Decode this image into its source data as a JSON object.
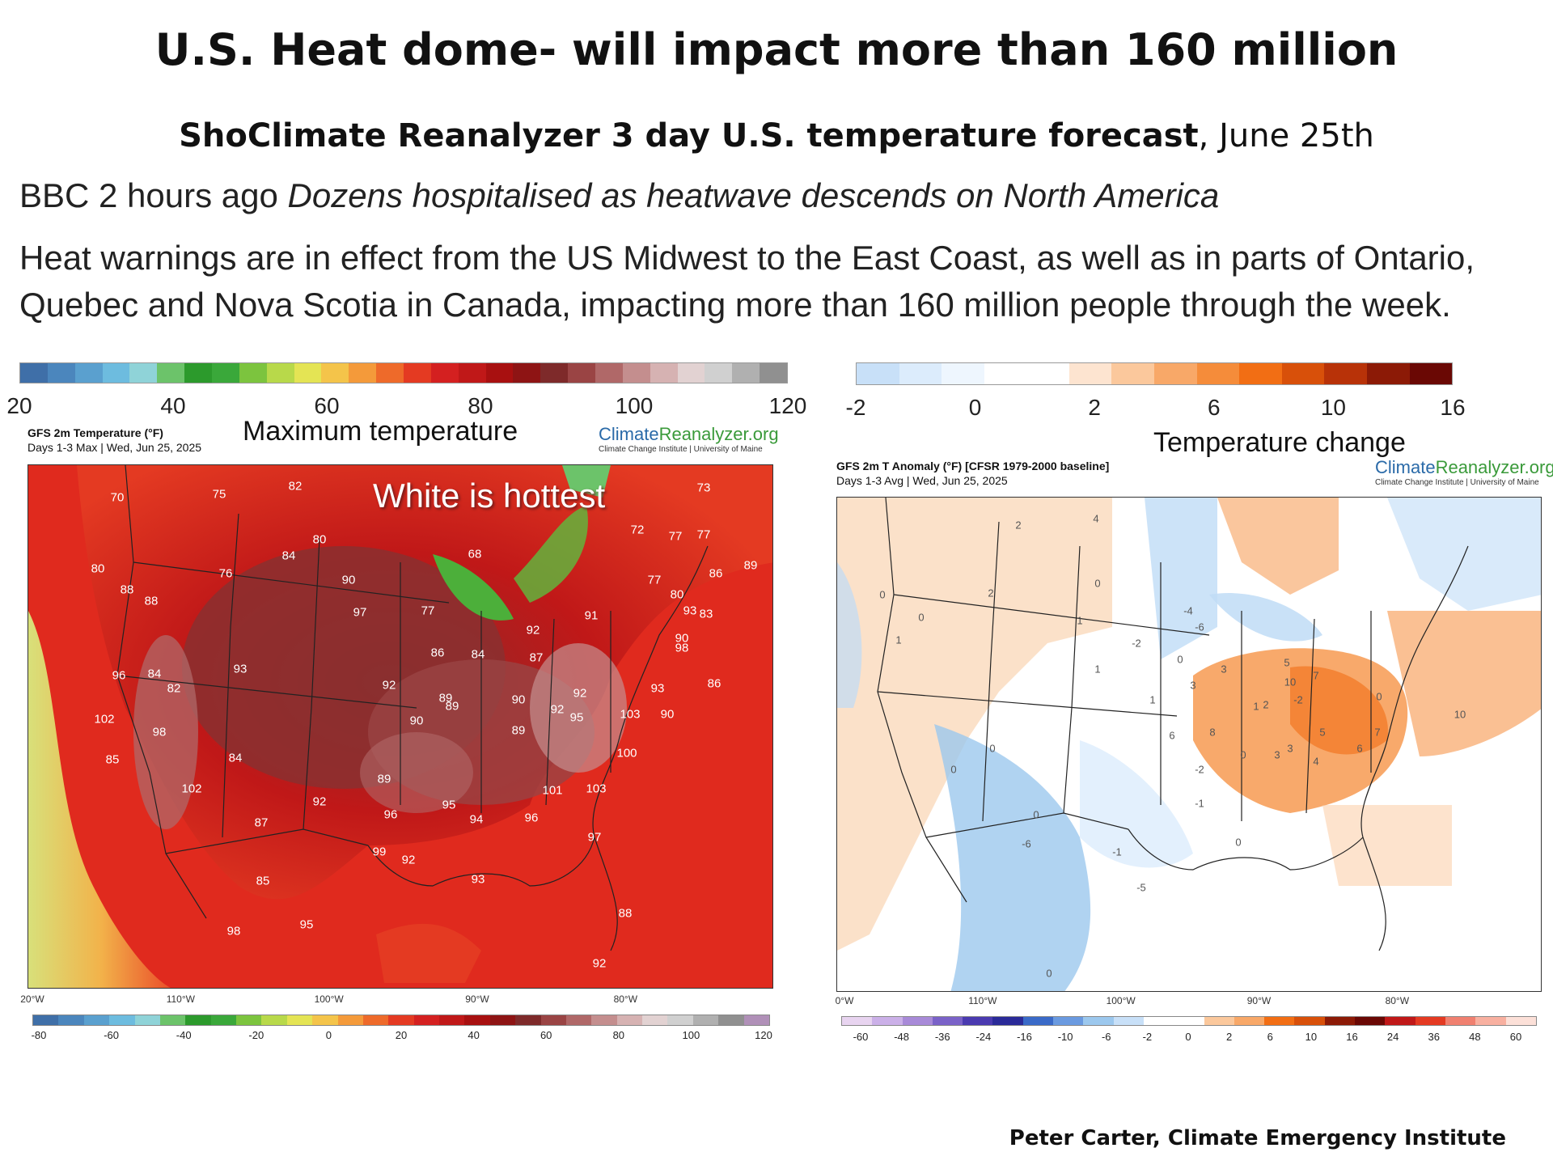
{
  "title": "U.S. Heat dome- will impact more than 160 million",
  "subtitle": {
    "bold": "ShoClimate Reanalyzer 3 day U.S. temperature forecast",
    "rest": ", June 25th"
  },
  "news": {
    "prefix": "BBC 2 hours ago ",
    "headline": "Dozens hospitalised as heatwave descends on North America"
  },
  "paragraph": "Heat warnings are in effect from the US Midwest to the East Coast, as well as in parts of Ontario, Quebec and Nova Scotia in Canada, impacting more than 160 million people through the week.",
  "left_panel": {
    "scale_ticks": [
      "20",
      "40",
      "60",
      "80",
      "100",
      "120"
    ],
    "overlay_label": "Maximum temperature",
    "header_line1": "GFS 2m Temperature (°F)",
    "header_line2": "Days 1-3 Max | Wed, Jun 25, 2025",
    "brand_part1": "Climate",
    "brand_part2": "Reanalyzer.org",
    "brand_sub": "Climate Change Institute | University of Maine",
    "hot_label": "White is hottest",
    "lon_labels": [
      "20°W",
      "110°W",
      "100°W",
      "90°W",
      "80°W"
    ],
    "bottom_ticks": [
      "-80",
      "-60",
      "-40",
      "-20",
      "0",
      "20",
      "40",
      "60",
      "80",
      "100",
      "120"
    ],
    "values": [
      "70",
      "75",
      "82",
      "73",
      "80",
      "72",
      "77",
      "77",
      "68",
      "80",
      "76",
      "84",
      "90",
      "86",
      "89",
      "77",
      "88",
      "97",
      "77",
      "80",
      "83",
      "93",
      "91",
      "88",
      "92",
      "90",
      "86",
      "84",
      "87",
      "96",
      "84",
      "93",
      "82",
      "92",
      "86",
      "98",
      "93",
      "90",
      "89",
      "90",
      "89",
      "92",
      "92",
      "102",
      "98",
      "90",
      "89",
      "95",
      "103",
      "85",
      "84",
      "100",
      "89",
      "95",
      "101",
      "103",
      "102",
      "92",
      "96",
      "94",
      "96",
      "87",
      "97",
      "99",
      "92",
      "93",
      "85",
      "95",
      "88",
      "98",
      "92"
    ]
  },
  "right_panel": {
    "scale_ticks": [
      "-2",
      "0",
      "2",
      "6",
      "10",
      "16"
    ],
    "overlay_label": "Temperature change",
    "header_line1": "GFS 2m T Anomaly (°F) [CFSR 1979-2000 baseline]",
    "header_line2": "Days 1-3 Avg | Wed, Jun 25, 2025",
    "brand_part1": "Climate",
    "brand_part2": "Reanalyzer.org",
    "brand_sub": "Climate Change Institute | University of Maine",
    "lon_labels": [
      "0°W",
      "110°W",
      "100°W",
      "90°W",
      "80°W"
    ],
    "bottom_ticks": [
      "-60",
      "-48",
      "-36",
      "-24",
      "-16",
      "-10",
      "-6",
      "-2",
      "0",
      "2",
      "6",
      "10",
      "16",
      "24",
      "36",
      "48",
      "60"
    ],
    "values": [
      "2",
      "4",
      "0",
      "2",
      "0",
      "1",
      "-4",
      "0",
      "0",
      "-6",
      "-2",
      "1",
      "1",
      "3",
      "5",
      "0",
      "2",
      "1",
      "3",
      "6",
      "10",
      "7",
      "-2",
      "8",
      "10",
      "1",
      "3",
      "5",
      "7",
      "-2",
      "0",
      "3",
      "4",
      "6",
      "-1",
      "0",
      "0",
      "0",
      "-6",
      "-1",
      "0",
      "-5",
      "0"
    ]
  },
  "credit": "Peter Carter,  Climate Emergency Institute",
  "colors": {
    "temp_scale": [
      "#3f6fa8",
      "#4b86bd",
      "#5aa0cf",
      "#6dbcdf",
      "#8fd3d8",
      "#6cc36a",
      "#2c9a2c",
      "#3aa83a",
      "#7cc43e",
      "#b8d94a",
      "#e4e454",
      "#f4c44a",
      "#f49a3a",
      "#ee6a2a",
      "#e43a22",
      "#d42020",
      "#c01818",
      "#a81010",
      "#8e1414",
      "#7e2a2a",
      "#9a4444",
      "#b06868",
      "#c48e8e",
      "#d6b2b2",
      "#e2d2d2",
      "#d0d0d0",
      "#b0b0b0",
      "#909090"
    ],
    "anom_scale": [
      "#c8e0f8",
      "#dcecfc",
      "#eef6fe",
      "#ffffff",
      "#ffffff",
      "#fde4d0",
      "#fbc89c",
      "#f8a868",
      "#f58c3a",
      "#f26e14",
      "#d8500a",
      "#b83208",
      "#8c1a06",
      "#6a0804"
    ]
  }
}
